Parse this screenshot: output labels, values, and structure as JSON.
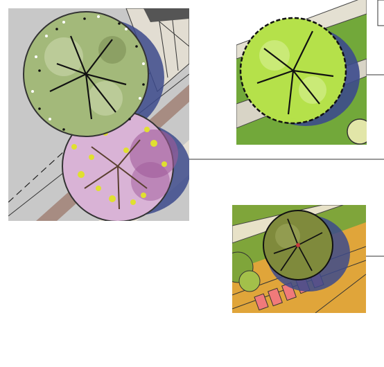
{
  "sheet": {
    "title": "",
    "background": "#ffffff"
  },
  "panels": [
    {
      "name": "tree-pair-plan",
      "trees": [
        "street-tree-green",
        "flowering-tree-pink"
      ],
      "colors": {
        "paving": "#c8c8c8",
        "canopy_green": "#a3b97a",
        "canopy_pink": "#d9b3d6",
        "highlight_yellow": "#e0e030",
        "shadow": "#3c4a8c"
      }
    },
    {
      "name": "single-tree-plan",
      "trees": [
        "lime-green-tree"
      ],
      "colors": {
        "lawn": "#72a83a",
        "canopy": "#b5e14a",
        "shadow": "#3c4a8c"
      }
    },
    {
      "name": "tree-over-orange-plan",
      "trees": [
        "olive-tree"
      ],
      "colors": {
        "paving": "#e0a53a",
        "canopy": "#7f8a3c",
        "planting_pink": "#f07a7a",
        "lawn": "#7fa53a"
      }
    }
  ],
  "leaders": [
    "leader-line-1",
    "leader-line-2",
    "leader-line-3"
  ]
}
